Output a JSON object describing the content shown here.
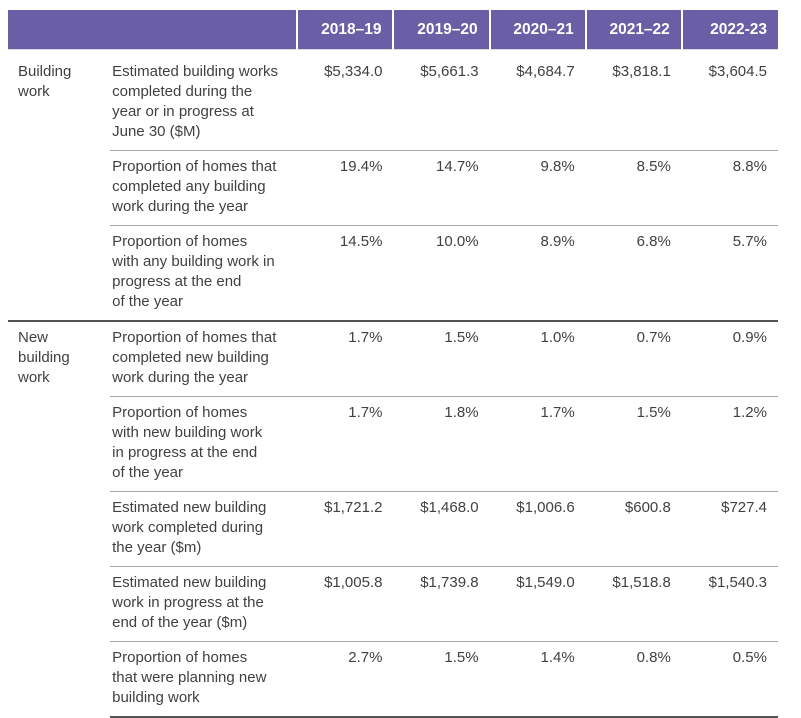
{
  "table": {
    "columns": [
      "2018–19",
      "2019–20",
      "2020–21",
      "2021–22",
      "2022-23"
    ],
    "sections": [
      {
        "category": "Building\nwork",
        "rows": [
          {
            "label": "Estimated building works\ncompleted during the\nyear or in progress at\nJune 30 ($M)",
            "values": [
              "$5,334.0",
              "$5,661.3",
              "$4,684.7",
              "$3,818.1",
              "$3,604.5"
            ]
          },
          {
            "label": "Proportion of homes that\ncompleted any building\nwork during the year",
            "values": [
              "19.4%",
              "14.7%",
              "9.8%",
              "8.5%",
              "8.8%"
            ]
          },
          {
            "label": "Proportion of homes\nwith any building work in\nprogress at the end\nof the year",
            "values": [
              "14.5%",
              "10.0%",
              "8.9%",
              "6.8%",
              "5.7%"
            ]
          }
        ]
      },
      {
        "category": "New\nbuilding\nwork",
        "rows": [
          {
            "label": "Proportion of homes that\ncompleted new building\nwork during the year",
            "values": [
              "1.7%",
              "1.5%",
              "1.0%",
              "0.7%",
              "0.9%"
            ]
          },
          {
            "label": "Proportion of homes\nwith new building work\nin progress at the end\nof the year",
            "values": [
              "1.7%",
              "1.8%",
              "1.7%",
              "1.5%",
              "1.2%"
            ]
          },
          {
            "label": "Estimated new building\nwork completed during\nthe year ($m)",
            "values": [
              "$1,721.2",
              "$1,468.0",
              "$1,006.6",
              "$600.8",
              "$727.4"
            ]
          },
          {
            "label": "Estimated new building\nwork in progress at the\nend of the year ($m)",
            "values": [
              "$1,005.8",
              "$1,739.8",
              "$1,549.0",
              "$1,518.8",
              "$1,540.3"
            ]
          },
          {
            "label": "Proportion of homes\nthat were planning new\nbuilding work",
            "values": [
              "2.7%",
              "1.5%",
              "1.4%",
              "0.8%",
              "0.5%"
            ]
          }
        ]
      }
    ],
    "colors": {
      "header_bg": "#6a5ea7",
      "header_text": "#ffffff",
      "body_text": "#414042",
      "row_divider": "#a7a9ac",
      "section_divider": "#545456"
    }
  }
}
